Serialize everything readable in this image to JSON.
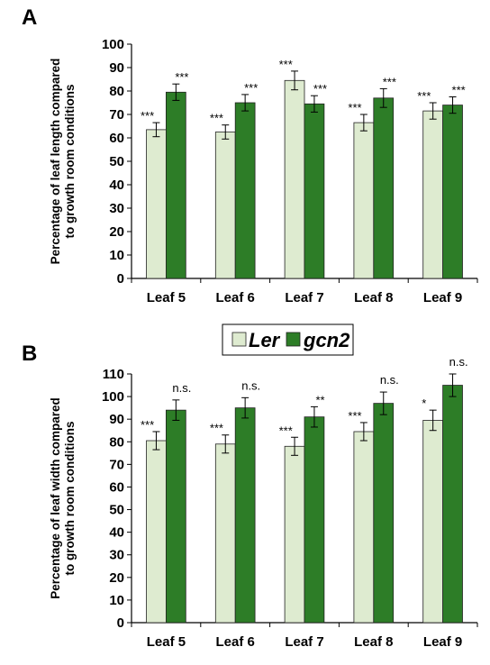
{
  "colors": {
    "ler": "#deebd0",
    "gcn2": "#2d7d27",
    "bar_stroke": "#222222",
    "axis": "#000000"
  },
  "legend": {
    "items": [
      {
        "key": "ler",
        "label": "Ler"
      },
      {
        "key": "gcn2",
        "label": "gcn2"
      }
    ]
  },
  "chart_data": [
    {
      "type": "bar",
      "panel": "A",
      "ylabel_line1": "Percentage  of leaf length  compared",
      "ylabel_line2": "to growth room conditions",
      "ylim": [
        0,
        100
      ],
      "yticks": [
        0,
        10,
        20,
        30,
        40,
        50,
        60,
        70,
        80,
        90,
        100
      ],
      "categories": [
        "Leaf 5",
        "Leaf 6",
        "Leaf 7",
        "Leaf 8",
        "Leaf 9"
      ],
      "grid": false,
      "legend_position": "below",
      "series": [
        {
          "name": "Ler",
          "key": "ler",
          "values": [
            63.5,
            62.5,
            84.5,
            66.5,
            71.5
          ],
          "errors": [
            3,
            3,
            4,
            3.5,
            3.5
          ],
          "sig": [
            "***",
            "***",
            "***",
            "***",
            "***"
          ]
        },
        {
          "name": "gcn2",
          "key": "gcn2",
          "values": [
            79.5,
            75,
            74.5,
            77,
            74
          ],
          "errors": [
            3.5,
            3.5,
            3.5,
            4,
            3.5
          ],
          "sig": [
            "***",
            "***",
            "***",
            "***",
            "***"
          ]
        }
      ]
    },
    {
      "type": "bar",
      "panel": "B",
      "ylabel_line1": "Percentage  of leaf width  compared",
      "ylabel_line2": "to growth room conditions",
      "ylim": [
        0,
        110
      ],
      "yticks": [
        0,
        10,
        20,
        30,
        40,
        50,
        60,
        70,
        80,
        90,
        100,
        110
      ],
      "categories": [
        "Leaf 5",
        "Leaf 6",
        "Leaf 7",
        "Leaf 8",
        "Leaf 9"
      ],
      "grid": false,
      "series": [
        {
          "name": "Ler",
          "key": "ler",
          "values": [
            80.5,
            79,
            78,
            84.5,
            89.5
          ],
          "errors": [
            4,
            4,
            4,
            4,
            4.5
          ],
          "sig": [
            "***",
            "***",
            "***",
            "***",
            "*"
          ]
        },
        {
          "name": "gcn2",
          "key": "gcn2",
          "values": [
            94,
            95,
            91,
            97,
            105
          ],
          "errors": [
            4.5,
            4.5,
            4.5,
            5,
            5
          ],
          "sig": [
            "n.s.",
            "n.s.",
            "**",
            "n.s.",
            "n.s."
          ]
        }
      ]
    }
  ]
}
